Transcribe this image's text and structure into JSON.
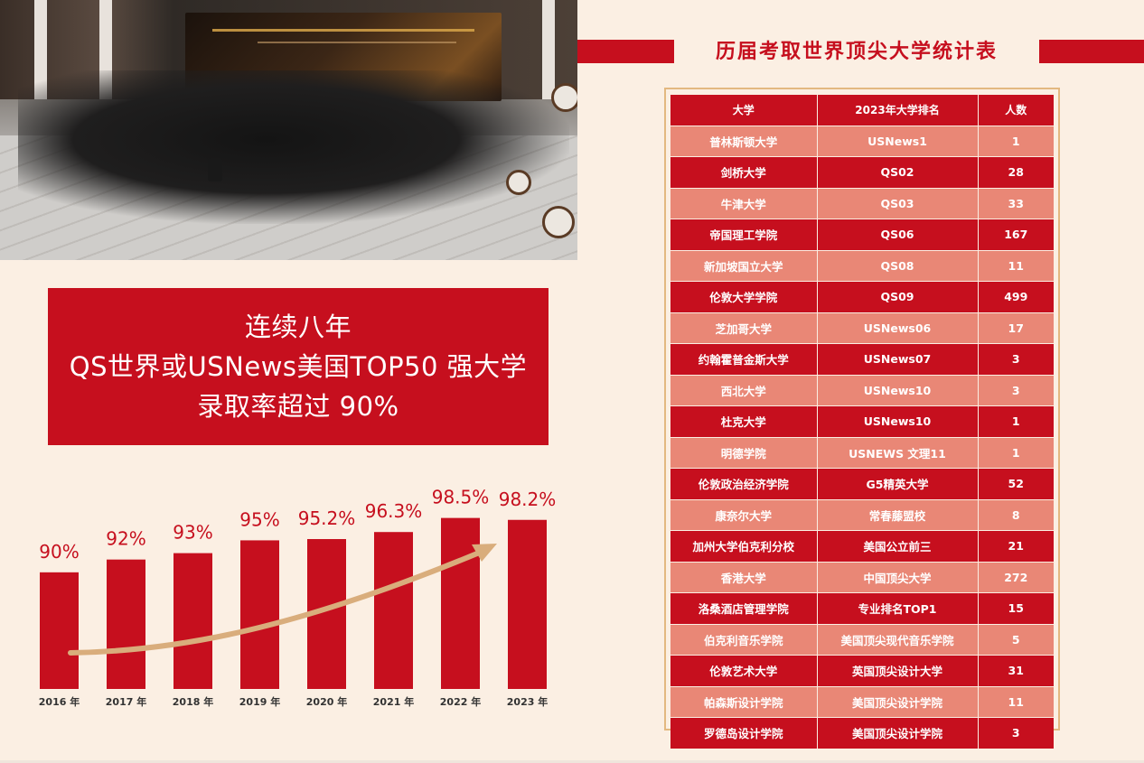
{
  "headline": {
    "line1": "连续八年",
    "line2": "QS世界或USNews美国TOP50 强大学",
    "line3": "录取率超过 90%"
  },
  "chart_data": {
    "type": "bar",
    "categories": [
      "2016 年",
      "2017 年",
      "2018 年",
      "2019 年",
      "2020 年",
      "2021 年",
      "2022 年",
      "2023 年"
    ],
    "values": [
      90,
      92,
      93,
      95,
      95.2,
      96.3,
      98.5,
      98.2
    ],
    "value_labels": [
      "90%",
      "92%",
      "93%",
      "95%",
      "95.2%",
      "96.3%",
      "98.5%",
      "98.2%"
    ],
    "colors": {
      "bar": "#c60f1e",
      "label": "#c60f1e",
      "trend_arrow": "#d9ad7c"
    },
    "trend_arrow": true,
    "grid": false,
    "legend": "none"
  },
  "table": {
    "title": "历届考取世界顶尖大学统计表",
    "headers": [
      "大学",
      "2023年大学排名",
      "人数"
    ],
    "rows": [
      [
        "普林斯顿大学",
        "USNews1",
        "1"
      ],
      [
        "剑桥大学",
        "QS02",
        "28"
      ],
      [
        "牛津大学",
        "QS03",
        "33"
      ],
      [
        "帝国理工学院",
        "QS06",
        "167"
      ],
      [
        "新加坡国立大学",
        "QS08",
        "11"
      ],
      [
        "伦敦大学学院",
        "QS09",
        "499"
      ],
      [
        "芝加哥大学",
        "USNews06",
        "17"
      ],
      [
        "约翰霍普金斯大学",
        "USNews07",
        "3"
      ],
      [
        "西北大学",
        "USNews10",
        "3"
      ],
      [
        "杜克大学",
        "USNews10",
        "1"
      ],
      [
        "明德学院",
        "USNEWS 文理11",
        "1"
      ],
      [
        "伦敦政治经济学院",
        "G5精英大学",
        "52"
      ],
      [
        "康奈尔大学",
        "常春藤盟校",
        "8"
      ],
      [
        "加州大学伯克利分校",
        "美国公立前三",
        "21"
      ],
      [
        "香港大学",
        "中国顶尖大学",
        "272"
      ],
      [
        "洛桑酒店管理学院",
        "专业排名TOP1",
        "15"
      ],
      [
        "伯克利音乐学院",
        "美国顶尖现代音乐学院",
        "5"
      ],
      [
        "伦敦艺术大学",
        "英国顶尖设计大学",
        "31"
      ],
      [
        "帕森斯设计学院",
        "美国顶尖设计学院",
        "11"
      ],
      [
        "罗德岛设计学院",
        "美国顶尖设计学院",
        "3"
      ]
    ]
  },
  "colors": {
    "primary_red": "#c60f1e",
    "light_red": "#e98776",
    "background": "#fbefe3",
    "gold_border": "#e3b880"
  }
}
